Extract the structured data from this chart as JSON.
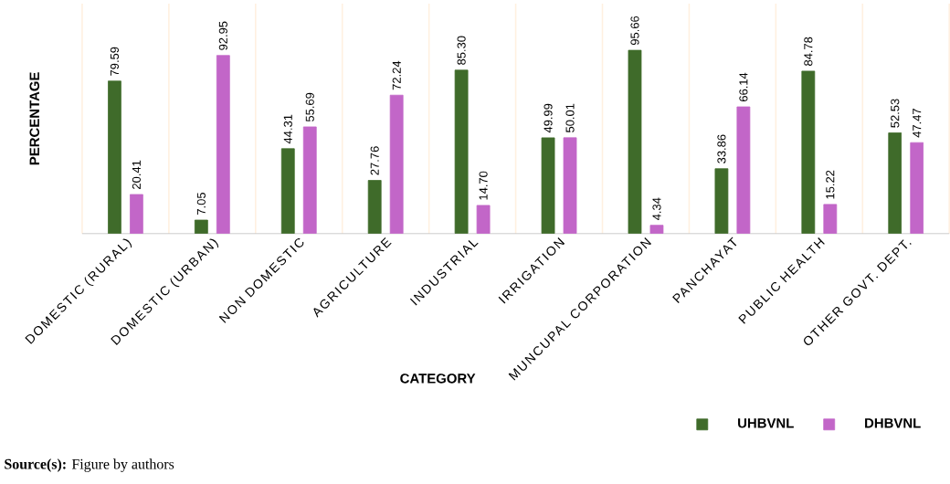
{
  "chart_data": {
    "type": "bar",
    "xlabel": "CATEGORY",
    "ylabel": "PERCENTAGE",
    "categories": [
      "DOMESTIC (RURAL)",
      "DOMESTIC (URBAN)",
      "NON DOMESTIC",
      "AGRICULTURE",
      "INDUSTRIAL",
      "IRRIGATION",
      "MUNCUPAL CORPORATION",
      "PANCHAYAT",
      "PUBLIC HEALTH",
      "OTHER GOVT. DEPT."
    ],
    "series": [
      {
        "name": "UHBVNL",
        "color": "#3f6b2a",
        "values": [
          79.59,
          7.05,
          44.31,
          27.76,
          85.3,
          49.99,
          95.66,
          33.86,
          84.78,
          52.53
        ],
        "value_labels": [
          "79.59",
          "7.05",
          "44.31",
          "27.76",
          "85.30",
          "49.99",
          "95.66",
          "33.86",
          "84.78",
          "52.53"
        ]
      },
      {
        "name": "DHBVNL",
        "color": "#c266c8",
        "values": [
          20.41,
          92.95,
          55.69,
          72.24,
          14.7,
          50.01,
          4.34,
          66.14,
          15.22,
          47.47
        ],
        "value_labels": [
          "20.41",
          "92.95",
          "55.69",
          "72.24",
          "14.70",
          "50.01",
          "4.34",
          "66.14",
          "15.22",
          "47.47"
        ]
      }
    ],
    "ylim": [
      0,
      120
    ],
    "tick_labels": "x",
    "grid": "x",
    "legend": "bottom right",
    "annotations": [
      "**Source(s):** Figure by authors"
    ]
  }
}
